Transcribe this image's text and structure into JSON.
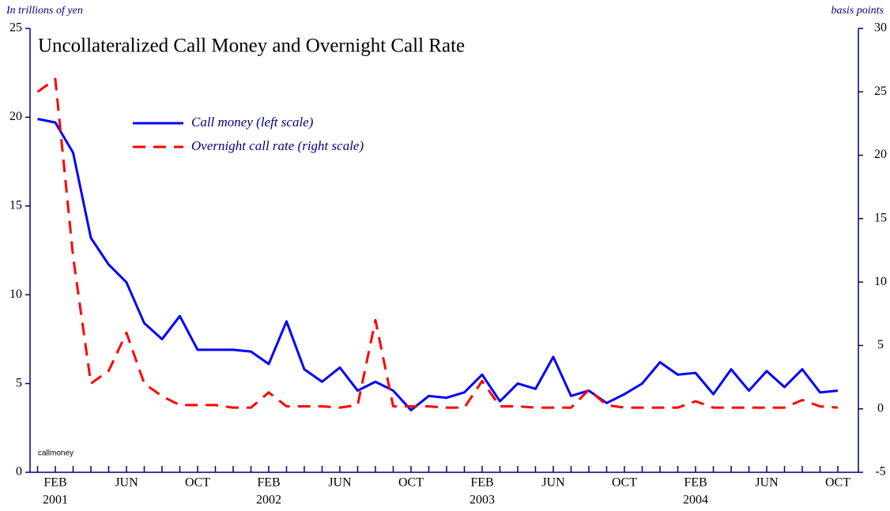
{
  "chart_data": {
    "type": "line",
    "title": "Uncollateralized Call Money and Overnight Call Rate",
    "y_axis_label": "In trillions of yen",
    "y2_axis_label": "basis points",
    "note": "callmoney",
    "categories": [
      null,
      "FEB",
      null,
      null,
      null,
      "JUN",
      null,
      null,
      null,
      "OCT",
      null,
      null,
      null,
      "FEB",
      null,
      null,
      null,
      "JUN",
      null,
      null,
      null,
      "OCT",
      null,
      null,
      null,
      "FEB",
      null,
      null,
      null,
      "JUN",
      null,
      null,
      null,
      "OCT",
      null,
      null,
      null,
      "FEB",
      null,
      null,
      null,
      "JUN",
      null,
      null,
      null,
      "OCT"
    ],
    "year_labels": [
      null,
      "2001",
      null,
      null,
      null,
      null,
      null,
      null,
      null,
      null,
      null,
      null,
      null,
      "2002",
      null,
      null,
      null,
      null,
      null,
      null,
      null,
      null,
      null,
      null,
      null,
      "2003",
      null,
      null,
      null,
      null,
      null,
      null,
      null,
      null,
      null,
      null,
      null,
      "2004",
      null,
      null,
      null,
      null,
      null,
      null,
      null,
      null
    ],
    "series": [
      {
        "name": "Call money (left scale)",
        "color": "#0000ff",
        "axis": "y",
        "values": [
          19.9,
          19.7,
          18.0,
          13.2,
          11.7,
          10.7,
          8.4,
          7.5,
          8.8,
          6.9,
          6.9,
          6.9,
          6.8,
          6.1,
          8.5,
          5.8,
          5.1,
          5.9,
          4.6,
          5.1,
          4.6,
          3.5,
          4.3,
          4.2,
          4.5,
          5.5,
          4.0,
          5.0,
          4.7,
          6.5,
          4.3,
          4.6,
          3.9,
          4.4,
          5.0,
          6.2,
          5.5,
          5.6,
          4.4,
          5.8,
          4.6,
          5.7,
          4.8,
          5.8,
          4.5,
          4.6
        ]
      },
      {
        "name": "Overnight call rate (right scale)",
        "color": "#ff0000",
        "axis": "y2",
        "values": [
          25,
          26,
          12,
          2,
          3,
          6,
          2,
          1,
          0.3,
          0.3,
          0.3,
          0.1,
          0.1,
          1.3,
          0.2,
          0.2,
          0.2,
          0.1,
          0.3,
          7,
          0.2,
          0.2,
          0.2,
          0.1,
          0.1,
          2.2,
          0.2,
          0.2,
          0.1,
          0.1,
          0.1,
          1.5,
          0.3,
          0.1,
          0.1,
          0.1,
          0.1,
          0.6,
          0.1,
          0.1,
          0.1,
          0.1,
          0.1,
          0.7,
          0.2,
          0.1
        ]
      }
    ],
    "ylim": [
      0,
      25
    ],
    "yticks": [
      0,
      5,
      10,
      15,
      20,
      25
    ],
    "y2lim": [
      -5,
      30
    ],
    "y2ticks": [
      -5,
      0,
      5,
      10,
      15,
      20,
      25,
      30
    ]
  }
}
